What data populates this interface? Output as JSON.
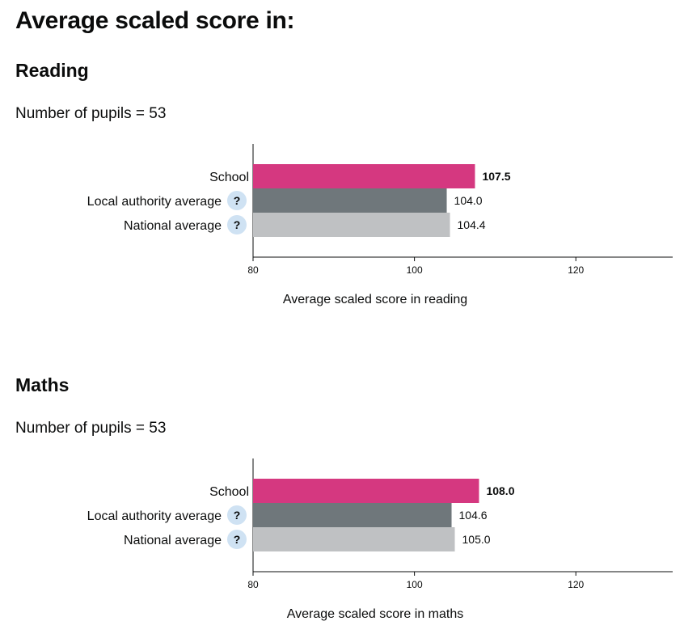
{
  "page": {
    "title": "Average scaled score in:"
  },
  "sections": [
    {
      "heading": "Reading",
      "pupils_text": "Number of pupils = 53",
      "chart": {
        "type": "bar",
        "orientation": "horizontal",
        "categories": [
          "School",
          "Local authority average",
          "National average"
        ],
        "values": [
          107.5,
          104.0,
          104.4
        ],
        "value_labels": [
          "107.5",
          "104.0",
          "104.4"
        ],
        "help_icons": [
          false,
          true,
          true
        ],
        "bold_value": [
          true,
          false,
          false
        ],
        "bar_colors": [
          "#d53880",
          "#6f777b",
          "#bfc1c3"
        ],
        "xlim": [
          80,
          132
        ],
        "xticks": [
          80,
          100,
          120
        ],
        "xlabel": "Average scaled score in reading"
      }
    },
    {
      "heading": "Maths",
      "pupils_text": "Number of pupils = 53",
      "chart": {
        "type": "bar",
        "orientation": "horizontal",
        "categories": [
          "School",
          "Local authority average",
          "National average"
        ],
        "values": [
          108.0,
          104.6,
          105.0
        ],
        "value_labels": [
          "108.0",
          "104.6",
          "105.0"
        ],
        "help_icons": [
          false,
          true,
          true
        ],
        "bold_value": [
          true,
          false,
          false
        ],
        "bar_colors": [
          "#d53880",
          "#6f777b",
          "#bfc1c3"
        ],
        "xlim": [
          80,
          132
        ],
        "xticks": [
          80,
          100,
          120
        ],
        "xlabel": "Average scaled score in maths"
      }
    }
  ],
  "chart_data": [
    {
      "type": "bar",
      "categories": [
        "School",
        "Local authority average",
        "National average"
      ],
      "values": [
        107.5,
        104.0,
        104.4
      ],
      "xlabel": "Average scaled score in reading",
      "xlim": [
        80,
        132
      ],
      "xticks": [
        80,
        100,
        120
      ],
      "grid": false,
      "legend": "none"
    },
    {
      "type": "bar",
      "categories": [
        "School",
        "Local authority average",
        "National average"
      ],
      "values": [
        108.0,
        104.6,
        105.0
      ],
      "xlabel": "Average scaled score in maths",
      "xlim": [
        80,
        132
      ],
      "xticks": [
        80,
        100,
        120
      ],
      "grid": false,
      "legend": "none"
    }
  ],
  "colors": {
    "school": "#d53880",
    "local_authority": "#6f777b",
    "national": "#bfc1c3",
    "help_icon_bg": "#cfe2f3",
    "text": "#0b0c0c"
  },
  "icons": {
    "help": "question-mark-icon",
    "help_glyph": "?"
  }
}
